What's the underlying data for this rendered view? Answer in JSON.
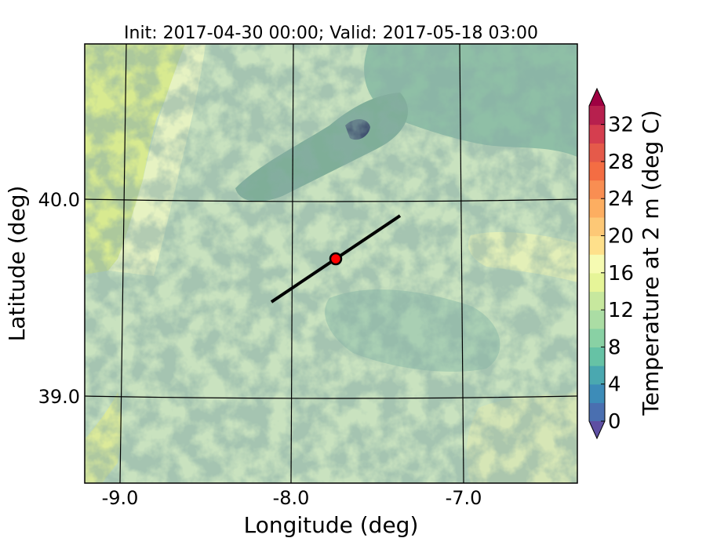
{
  "title": "Init: 2017-04-30 00:00; Valid: 2017-05-18 03:00",
  "map": {
    "x_label": "Longitude (deg)",
    "y_label": "Latitude (deg)",
    "lon_ticks": [
      "-9.0",
      "-8.0",
      "-7.0"
    ],
    "lat_ticks": [
      "40.0",
      "39.0"
    ],
    "line_color": "#000000",
    "marker_color": "#ff0000"
  },
  "colorbar": {
    "label": "Temperature at 2 m (deg C)",
    "ticks": [
      "0",
      "4",
      "8",
      "12",
      "16",
      "20",
      "24",
      "28",
      "32"
    ],
    "palette": [
      "#5e4fa2",
      "#4a6fb0",
      "#3d8cb8",
      "#4aa8b0",
      "#66c2a5",
      "#89d1a4",
      "#abdda4",
      "#c7e89e",
      "#e6f598",
      "#f6fbb2",
      "#fee08b",
      "#fdc876",
      "#fdae61",
      "#f98e52",
      "#f46d43",
      "#e55a4a",
      "#d53e4f",
      "#b7204e",
      "#9e0142"
    ]
  }
}
